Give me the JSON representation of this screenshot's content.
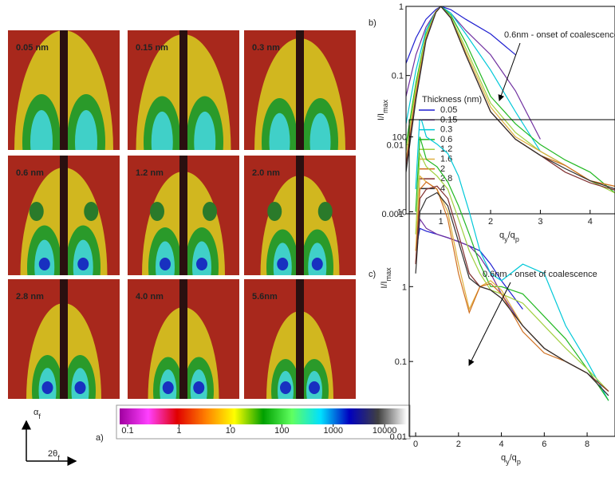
{
  "panels": {
    "labels": [
      "0.05 nm",
      "0.15 nm",
      "0.3 nm",
      "0.6 nm",
      "1.2 nm",
      "2.0 nm",
      "2.8 nm",
      "4.0 nm",
      "5.6nm"
    ],
    "letter": "a)",
    "axis_y": {
      "main": "α",
      "sub": "f"
    },
    "axis_x": {
      "main": "2θ",
      "sub": "f"
    },
    "colorbar": {
      "lim": [
        0.07,
        27000
      ],
      "ticks": [
        0.1,
        1,
        10,
        100,
        1000,
        10000
      ]
    }
  },
  "chart_data": [
    {
      "type": "line",
      "letter": "b)",
      "log_y": true,
      "ylabel": {
        "main": "I/I",
        "sub": "max"
      },
      "xlabel": {
        "a": "q",
        "a_sub": "y",
        "b": "/q",
        "b_sub": "p"
      },
      "annotation": "0.6nm - onset of coalescence",
      "legend_title": "Thickness (nm)",
      "legend": "center left",
      "xlim": [
        0.3,
        4.5
      ],
      "xticks": [
        1,
        2,
        3,
        4
      ],
      "ylim": [
        0.001,
        1
      ],
      "yticks": [
        0.001,
        0.01,
        0.1,
        1
      ],
      "x": [
        0.3,
        0.5,
        0.7,
        0.9,
        1.0,
        1.2,
        1.5,
        2.0,
        2.5,
        3.0,
        3.5,
        4.0,
        4.5
      ],
      "series": [
        {
          "name": "0.05",
          "color": "#1f1fd0",
          "values": [
            0.15,
            0.35,
            0.65,
            0.9,
            1,
            0.9,
            0.65,
            0.4,
            0.2,
            null,
            null,
            null,
            null
          ]
        },
        {
          "name": "0.15",
          "color": "#7030a0",
          "values": [
            0.05,
            0.2,
            0.5,
            0.85,
            1,
            0.8,
            0.45,
            0.2,
            0.06,
            0.012,
            null,
            null,
            null
          ]
        },
        {
          "name": "0.3",
          "color": "#00c8d8",
          "values": [
            0.02,
            0.12,
            0.45,
            0.85,
            1,
            0.8,
            0.4,
            0.12,
            0.03,
            0.008,
            0.005,
            null,
            null
          ]
        },
        {
          "name": "0.6",
          "color": "#22b822",
          "values": [
            0.01,
            0.08,
            0.4,
            0.85,
            1,
            0.75,
            0.3,
            0.05,
            0.02,
            0.01,
            0.006,
            0.004,
            0.002
          ]
        },
        {
          "name": "1.2",
          "color": "#a0d040",
          "values": [
            0.008,
            0.07,
            0.38,
            0.85,
            1,
            0.7,
            0.25,
            0.04,
            0.015,
            0.008,
            0.005,
            0.003,
            0.002
          ]
        },
        {
          "name": "1.6",
          "color": "#e0b040",
          "values": [
            0.006,
            0.06,
            0.35,
            0.85,
            1,
            0.7,
            0.22,
            0.035,
            0.013,
            0.008,
            0.005,
            0.003,
            0.0025
          ]
        },
        {
          "name": "2",
          "color": "#d07020",
          "values": [
            0.005,
            0.05,
            0.33,
            0.82,
            1,
            0.68,
            0.2,
            0.03,
            0.012,
            0.007,
            0.005,
            0.003,
            0.0025
          ]
        },
        {
          "name": "2.8",
          "color": "#803030",
          "values": [
            0.005,
            0.05,
            0.33,
            0.82,
            1,
            0.68,
            0.2,
            0.03,
            0.012,
            0.007,
            0.004,
            0.0028,
            0.0022
          ]
        },
        {
          "name": "4",
          "color": "#303030",
          "values": [
            0.004,
            0.045,
            0.32,
            0.82,
            1,
            0.68,
            0.2,
            0.03,
            0.012,
            0.007,
            0.0045,
            0.003,
            0.0023
          ]
        }
      ]
    },
    {
      "type": "line",
      "letter": "c)",
      "log_y": true,
      "ylabel": {
        "main": "I/I",
        "sub": "max"
      },
      "xlabel": {
        "a": "q",
        "a_sub": "y",
        "b": "/q",
        "b_sub": "p"
      },
      "annotation": "0.6nm - onset of coalescence",
      "xlim": [
        -0.3,
        9.3
      ],
      "xticks": [
        0,
        2,
        4,
        6,
        8
      ],
      "ylim": [
        0.01,
        170
      ],
      "yticks": [
        0.01,
        0.1,
        1,
        10,
        100
      ],
      "x": [
        0,
        0.2,
        0.5,
        1,
        1.5,
        2,
        2.5,
        3,
        3.5,
        4,
        5,
        6,
        7,
        8,
        9
      ],
      "series": [
        {
          "name": "0.05",
          "color": "#1f1fd0",
          "values": [
            3,
            6,
            5.5,
            5,
            4.5,
            4,
            3.5,
            3,
            2,
            1.2,
            0.5,
            null,
            null,
            null,
            null
          ]
        },
        {
          "name": "0.15",
          "color": "#7030a0",
          "values": [
            2,
            8,
            6,
            5,
            4.5,
            4,
            3.5,
            2.5,
            1.5,
            0.8,
            0.3,
            null,
            null,
            null,
            null
          ]
        },
        {
          "name": "0.3",
          "color": "#00c8d8",
          "values": [
            20,
            200,
            100,
            80,
            60,
            30,
            10,
            3,
            1.5,
            1.2,
            2,
            1.5,
            0.3,
            0.1,
            0.03
          ]
        },
        {
          "name": "0.6",
          "color": "#22b822",
          "values": [
            10,
            100,
            50,
            40,
            25,
            12,
            5,
            2,
            1,
            1,
            0.8,
            0.4,
            0.2,
            0.08,
            0.03
          ]
        },
        {
          "name": "1.2",
          "color": "#a0d040",
          "values": [
            5,
            60,
            40,
            30,
            20,
            8,
            3,
            1.5,
            0.9,
            0.8,
            0.6,
            0.3,
            0.15,
            0.08,
            0.04
          ]
        },
        {
          "name": "1.6",
          "color": "#e0b040",
          "values": [
            3,
            30,
            25,
            20,
            10,
            2,
            0.5,
            1,
            1.2,
            0.9,
            0.3,
            0.15,
            0.1,
            0.07,
            0.04
          ]
        },
        {
          "name": "2",
          "color": "#d07020",
          "values": [
            2,
            20,
            25,
            20,
            8,
            1.5,
            0.45,
            1,
            1.1,
            0.8,
            0.25,
            0.13,
            0.1,
            0.07,
            0.04
          ]
        },
        {
          "name": "2.8",
          "color": "#803030",
          "values": [
            2,
            15,
            20,
            22,
            15,
            5,
            1.5,
            1,
            0.9,
            0.7,
            0.3,
            0.15,
            0.1,
            0.07,
            0.04
          ]
        },
        {
          "name": "4",
          "color": "#303030",
          "values": [
            1.5,
            10,
            15,
            18,
            12,
            4,
            1.3,
            1,
            0.9,
            0.7,
            0.3,
            0.15,
            0.1,
            0.07,
            0.035
          ]
        }
      ]
    }
  ]
}
